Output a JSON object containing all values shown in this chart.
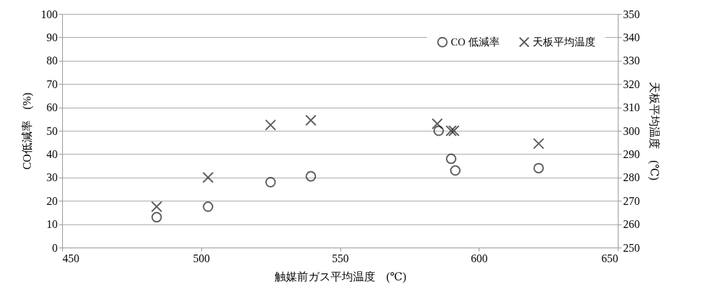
{
  "chart_data": {
    "type": "scatter",
    "xlabel": "触媒前ガス平均温度　(℃)",
    "ylabel": "CO低減率　(%)",
    "y2label": "天板平均温度　(℃)",
    "xlim": [
      450,
      650
    ],
    "xticks": [
      450,
      500,
      550,
      600,
      650
    ],
    "ylim": [
      0,
      100
    ],
    "yticks": [
      0,
      10,
      20,
      30,
      40,
      50,
      60,
      70,
      80,
      90,
      100
    ],
    "y2lim": [
      250,
      350
    ],
    "y2ticks": [
      250,
      260,
      270,
      280,
      290,
      300,
      310,
      320,
      330,
      340,
      350
    ],
    "grid": "y",
    "legend": "top right",
    "series": [
      {
        "name": "CO 低減率",
        "color": "#1a1a1a",
        "marker": "circle",
        "x": [
          484,
          502.5,
          525,
          539.5,
          585.5,
          590,
          591.5,
          621.5
        ],
        "values": [
          13,
          17.5,
          28,
          30.5,
          50,
          38,
          33,
          34
        ]
      },
      {
        "name": "天板平均温度",
        "color": "#1a1a1a",
        "marker": "cross",
        "axis": "y2",
        "x": [
          484,
          502.5,
          525,
          539.5,
          585,
          590,
          591,
          621.5
        ],
        "values": [
          267.5,
          280,
          302.5,
          304.5,
          303,
          300,
          300,
          294.5
        ]
      }
    ]
  }
}
